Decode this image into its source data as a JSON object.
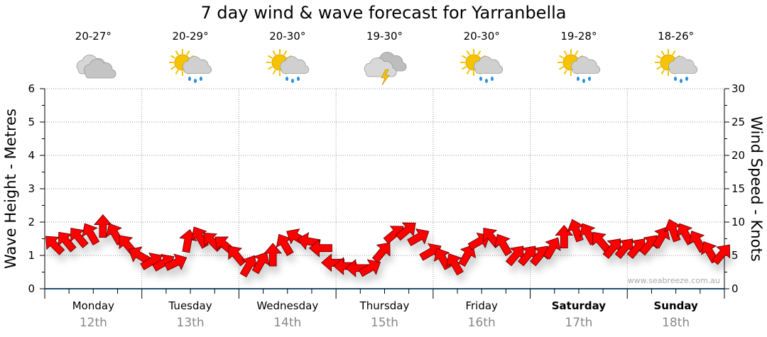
{
  "title": "7 day wind & wave forecast for Yarranbella",
  "watermark": "www.seabreeze.com.au",
  "days": [
    {
      "name": "Monday",
      "date": "12th",
      "temp": "20-27°",
      "icon": "cloudy-icon",
      "bold": false
    },
    {
      "name": "Tuesday",
      "date": "13th",
      "temp": "20-29°",
      "icon": "sun-cloud-rain-icon",
      "bold": false
    },
    {
      "name": "Wednesday",
      "date": "14th",
      "temp": "20-30°",
      "icon": "sun-cloud-rain-icon",
      "bold": false
    },
    {
      "name": "Thursday",
      "date": "15th",
      "temp": "19-30°",
      "icon": "thunderstorm-icon",
      "bold": false
    },
    {
      "name": "Friday",
      "date": "16th",
      "temp": "20-30°",
      "icon": "sun-cloud-rain-icon",
      "bold": false
    },
    {
      "name": "Saturday",
      "date": "17th",
      "temp": "19-28°",
      "icon": "sun-cloud-rain-icon",
      "bold": true
    },
    {
      "name": "Sunday",
      "date": "18th",
      "temp": "18-26°",
      "icon": "sun-cloud-rain-icon",
      "bold": true
    }
  ],
  "colors": {
    "arrow": "#ff0000",
    "arrow_stroke": "#5a0000",
    "axis": "#1f4e79",
    "grid": "#999999",
    "sun": "#f5c400",
    "cloud": "#c8c8c8",
    "rain": "#2a8fd8"
  },
  "chart_data": {
    "type": "scatter",
    "title": "7 day wind & wave forecast for Yarranbella",
    "ylabel_left": "Wave Height - Metres",
    "ylabel_right": "Wind Speed - Knots",
    "ylim_left": [
      0,
      6
    ],
    "ylim_right": [
      0,
      30
    ],
    "yticks_left": [
      "0",
      "1",
      "2",
      "3",
      "4",
      "5",
      "6"
    ],
    "yticks_right": [
      "0",
      "5",
      "10",
      "15",
      "20",
      "25",
      "30"
    ],
    "grid": true,
    "interval_hours": 3,
    "series": [
      {
        "name": "Wind",
        "speed_knots": [
          6.6,
          7.1,
          7.7,
          8.2,
          9.3,
          8.2,
          6.6,
          5.0,
          4.1,
          3.9,
          3.9,
          7.1,
          7.7,
          7.1,
          6.6,
          5.0,
          3.4,
          3.9,
          5.0,
          6.6,
          7.7,
          7.1,
          6.1,
          3.9,
          3.4,
          3.1,
          3.1,
          5.5,
          8.2,
          8.7,
          7.7,
          5.5,
          4.5,
          3.7,
          5.0,
          7.1,
          7.7,
          6.6,
          5.0,
          5.0,
          5.0,
          6.1,
          7.7,
          8.7,
          8.2,
          7.1,
          6.1,
          6.1,
          6.1,
          6.6,
          7.7,
          8.7,
          8.2,
          7.1,
          5.5,
          5.2
        ],
        "arrow_bearing_deg": [
          315,
          320,
          320,
          330,
          0,
          330,
          320,
          300,
          60,
          60,
          65,
          10,
          330,
          315,
          310,
          320,
          30,
          30,
          0,
          330,
          300,
          280,
          270,
          270,
          270,
          270,
          60,
          40,
          50,
          50,
          60,
          60,
          330,
          330,
          30,
          60,
          320,
          330,
          40,
          40,
          40,
          30,
          0,
          340,
          330,
          320,
          40,
          40,
          40,
          40,
          30,
          340,
          330,
          330,
          330,
          40
        ]
      }
    ]
  }
}
